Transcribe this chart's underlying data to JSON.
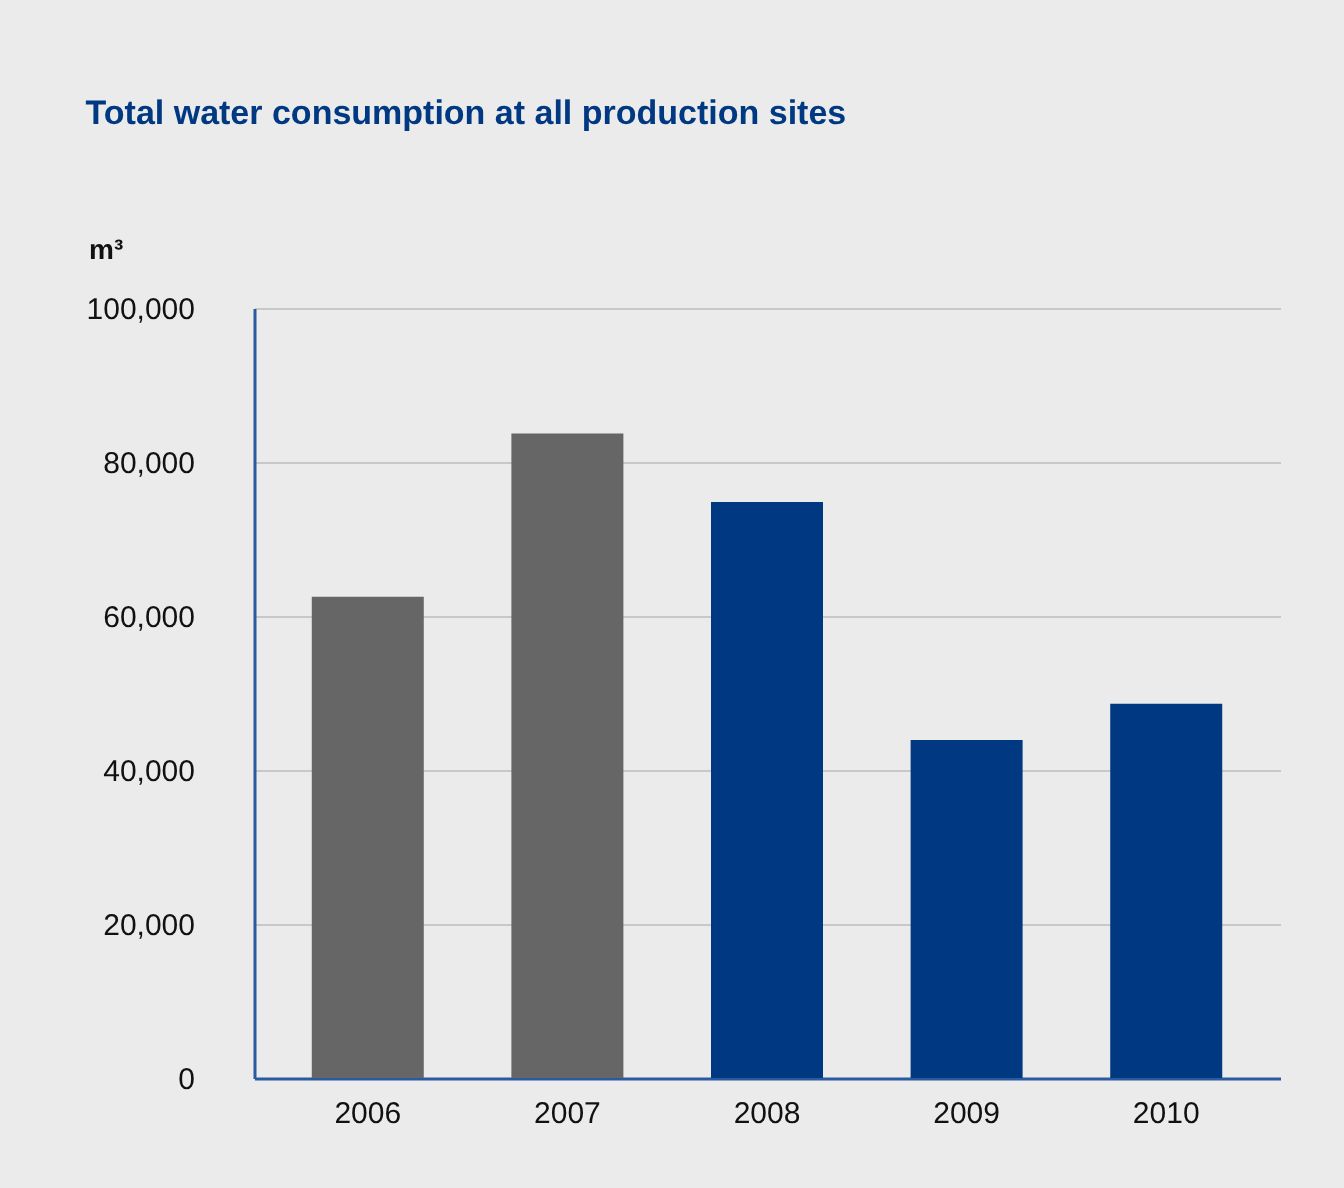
{
  "chart_data": {
    "type": "bar",
    "title": "Total water consumption at all production sites",
    "ylabel": "m³",
    "categories": [
      "2006",
      "2007",
      "2008",
      "2009",
      "2010"
    ],
    "values": [
      62500,
      83700,
      74800,
      43900,
      48600
    ],
    "colors": [
      "#666666",
      "#666666",
      "#003882",
      "#003882",
      "#003882"
    ],
    "ylim": [
      0,
      100000
    ],
    "yticks": [
      0,
      {
        "value": 20000,
        "label": "20,000"
      },
      {
        "value": 40000,
        "label": "40,000"
      },
      {
        "value": 60000,
        "label": "60,000"
      },
      {
        "value": 80000,
        "label": "80,000"
      },
      {
        "value": 100000,
        "label": "100,000"
      }
    ],
    "grid": "y"
  }
}
